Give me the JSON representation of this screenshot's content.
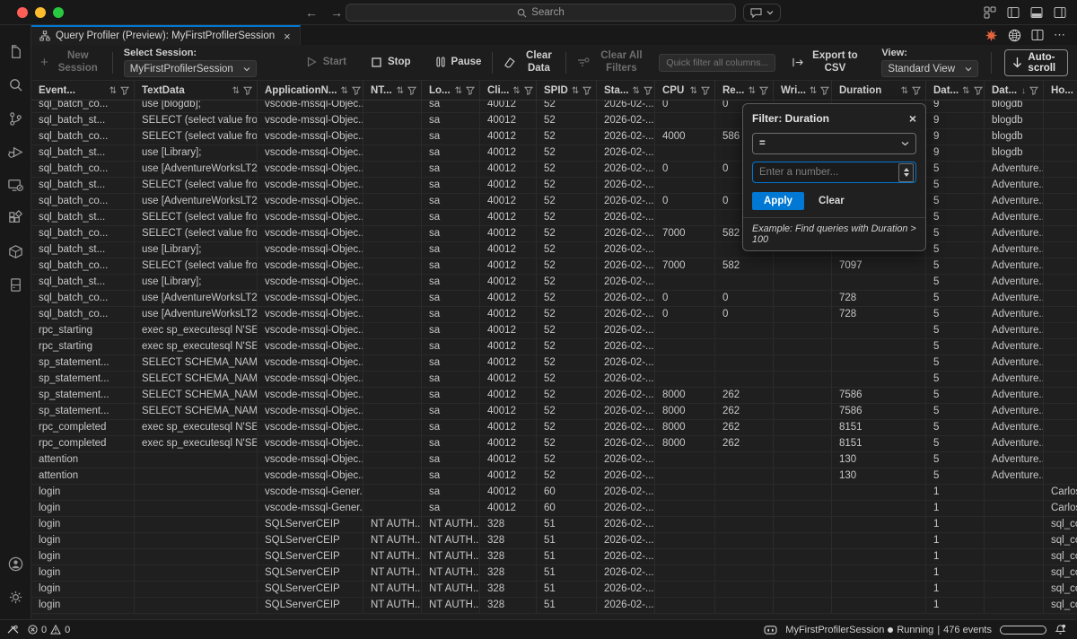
{
  "window": {
    "search_placeholder": "Search"
  },
  "tab": {
    "title": "Query Profiler (Preview): MyFirstProfilerSession",
    "close": "×"
  },
  "toolbar": {
    "new_session": "New Session",
    "select_session_label": "Select Session:",
    "session_value": "MyFirstProfilerSession",
    "start": "Start",
    "stop": "Stop",
    "pause": "Pause",
    "clear_data": "Clear Data",
    "clear_all_filters": "Clear All Filters",
    "quick_filter_placeholder": "Quick filter all columns...",
    "export_csv": "Export to CSV",
    "view_label": "View:",
    "view_value": "Standard View",
    "autoscroll": "Auto-scroll"
  },
  "filter_popup": {
    "title": "Filter: Duration",
    "close": "×",
    "operator": "=",
    "input_placeholder": "Enter a number...",
    "apply": "Apply",
    "clear": "Clear",
    "example": "Example: Find queries with Duration > 100"
  },
  "table": {
    "columns": [
      {
        "key": "event",
        "label": "Event...",
        "sort": "both"
      },
      {
        "key": "textdata",
        "label": "TextData",
        "sort": "both"
      },
      {
        "key": "applicationname",
        "label": "ApplicationN...",
        "sort": "both"
      },
      {
        "key": "ntusername",
        "label": "NT...",
        "sort": "both"
      },
      {
        "key": "loginname",
        "label": "Lo...",
        "sort": "both"
      },
      {
        "key": "clientprocessid",
        "label": "Cli...",
        "sort": "both"
      },
      {
        "key": "spid",
        "label": "SPID",
        "sort": "both"
      },
      {
        "key": "starttime",
        "label": "Sta...",
        "sort": "both"
      },
      {
        "key": "cpu",
        "label": "CPU",
        "sort": "both"
      },
      {
        "key": "reads",
        "label": "Re...",
        "sort": "both"
      },
      {
        "key": "writes",
        "label": "Wri...",
        "sort": "both"
      },
      {
        "key": "duration",
        "label": "Duration",
        "sort": "both"
      },
      {
        "key": "databaseid",
        "label": "Dat...",
        "sort": "both"
      },
      {
        "key": "databasename",
        "label": "Dat...",
        "sort": "desc"
      },
      {
        "key": "hostname",
        "label": "Ho...",
        "sort": "both"
      }
    ],
    "rows": [
      [
        "sql_batch_co...",
        "use [blogdb];",
        "vscode-mssql-Objec...",
        "",
        "sa",
        "40012",
        "52",
        "2026-02-...",
        "0",
        "0",
        "",
        "",
        "9",
        "blogdb",
        ""
      ],
      [
        "sql_batch_st...",
        "SELECT (select value from sys.d...",
        "vscode-mssql-Objec...",
        "",
        "sa",
        "40012",
        "52",
        "2026-02-...",
        "",
        "",
        "",
        "",
        "9",
        "blogdb",
        ""
      ],
      [
        "sql_batch_co...",
        "SELECT (select value from sys.d...",
        "vscode-mssql-Objec...",
        "",
        "sa",
        "40012",
        "52",
        "2026-02-...",
        "4000",
        "586",
        "",
        "",
        "9",
        "blogdb",
        ""
      ],
      [
        "sql_batch_st...",
        "use [Library];",
        "vscode-mssql-Objec...",
        "",
        "sa",
        "40012",
        "52",
        "2026-02-...",
        "",
        "",
        "",
        "",
        "9",
        "blogdb",
        ""
      ],
      [
        "sql_batch_co...",
        "use [AdventureWorksLT2022];",
        "vscode-mssql-Objec...",
        "",
        "sa",
        "40012",
        "52",
        "2026-02-...",
        "0",
        "0",
        "",
        "",
        "5",
        "Adventure...",
        ""
      ],
      [
        "sql_batch_st...",
        "SELECT (select value from sys.d...",
        "vscode-mssql-Objec...",
        "",
        "sa",
        "40012",
        "52",
        "2026-02-...",
        "",
        "",
        "",
        "",
        "5",
        "Adventure...",
        ""
      ],
      [
        "sql_batch_co...",
        "use [AdventureWorksLT2022];",
        "vscode-mssql-Objec...",
        "",
        "sa",
        "40012",
        "52",
        "2026-02-...",
        "0",
        "0",
        "",
        "",
        "5",
        "Adventure...",
        ""
      ],
      [
        "sql_batch_st...",
        "SELECT (select value from sys.d...",
        "vscode-mssql-Objec...",
        "",
        "sa",
        "40012",
        "52",
        "2026-02-...",
        "",
        "",
        "",
        "",
        "5",
        "Adventure...",
        ""
      ],
      [
        "sql_batch_co...",
        "SELECT (select value from sys.d...",
        "vscode-mssql-Objec...",
        "",
        "sa",
        "40012",
        "52",
        "2026-02-...",
        "7000",
        "582",
        "",
        "7097",
        "5",
        "Adventure...",
        ""
      ],
      [
        "sql_batch_st...",
        "use [Library];",
        "vscode-mssql-Objec...",
        "",
        "sa",
        "40012",
        "52",
        "2026-02-...",
        "",
        "",
        "",
        "",
        "5",
        "Adventure...",
        ""
      ],
      [
        "sql_batch_co...",
        "SELECT (select value from sys.d...",
        "vscode-mssql-Objec...",
        "",
        "sa",
        "40012",
        "52",
        "2026-02-...",
        "7000",
        "582",
        "",
        "7097",
        "5",
        "Adventure...",
        ""
      ],
      [
        "sql_batch_st...",
        "use [Library];",
        "vscode-mssql-Objec...",
        "",
        "sa",
        "40012",
        "52",
        "2026-02-...",
        "",
        "",
        "",
        "",
        "5",
        "Adventure...",
        ""
      ],
      [
        "sql_batch_co...",
        "use [AdventureWorksLT2022]",
        "vscode-mssql-Objec...",
        "",
        "sa",
        "40012",
        "52",
        "2026-02-...",
        "0",
        "0",
        "",
        "728",
        "5",
        "Adventure...",
        ""
      ],
      [
        "sql_batch_co...",
        "use [AdventureWorksLT2022]",
        "vscode-mssql-Objec...",
        "",
        "sa",
        "40012",
        "52",
        "2026-02-...",
        "0",
        "0",
        "",
        "728",
        "5",
        "Adventure...",
        ""
      ],
      [
        "rpc_starting",
        "exec sp_executesql N'SELECT S...",
        "vscode-mssql-Objec...",
        "",
        "sa",
        "40012",
        "52",
        "2026-02-...",
        "",
        "",
        "",
        "",
        "5",
        "Adventure...",
        ""
      ],
      [
        "rpc_starting",
        "exec sp_executesql N'SELECT S...",
        "vscode-mssql-Objec...",
        "",
        "sa",
        "40012",
        "52",
        "2026-02-...",
        "",
        "",
        "",
        "",
        "5",
        "Adventure...",
        ""
      ],
      [
        "sp_statement...",
        "SELECT SCHEMA_NAME(tbl.sch...",
        "vscode-mssql-Objec...",
        "",
        "sa",
        "40012",
        "52",
        "2026-02-...",
        "",
        "",
        "",
        "",
        "5",
        "Adventure...",
        ""
      ],
      [
        "sp_statement...",
        "SELECT SCHEMA_NAME(tbl.sch...",
        "vscode-mssql-Objec...",
        "",
        "sa",
        "40012",
        "52",
        "2026-02-...",
        "",
        "",
        "",
        "",
        "5",
        "Adventure...",
        ""
      ],
      [
        "sp_statement...",
        "SELECT SCHEMA_NAME(tbl.sch...",
        "vscode-mssql-Objec...",
        "",
        "sa",
        "40012",
        "52",
        "2026-02-...",
        "8000",
        "262",
        "",
        "7586",
        "5",
        "Adventure...",
        ""
      ],
      [
        "sp_statement...",
        "SELECT SCHEMA_NAME(tbl.sch...",
        "vscode-mssql-Objec...",
        "",
        "sa",
        "40012",
        "52",
        "2026-02-...",
        "8000",
        "262",
        "",
        "7586",
        "5",
        "Adventure...",
        ""
      ],
      [
        "rpc_completed",
        "exec sp_executesql N'SELECT S...",
        "vscode-mssql-Objec...",
        "",
        "sa",
        "40012",
        "52",
        "2026-02-...",
        "8000",
        "262",
        "",
        "8151",
        "5",
        "Adventure...",
        ""
      ],
      [
        "rpc_completed",
        "exec sp_executesql N'SELECT S...",
        "vscode-mssql-Objec...",
        "",
        "sa",
        "40012",
        "52",
        "2026-02-...",
        "8000",
        "262",
        "",
        "8151",
        "5",
        "Adventure...",
        ""
      ],
      [
        "attention",
        "",
        "vscode-mssql-Objec...",
        "",
        "sa",
        "40012",
        "52",
        "2026-02-...",
        "",
        "",
        "",
        "130",
        "5",
        "Adventure...",
        ""
      ],
      [
        "attention",
        "",
        "vscode-mssql-Objec...",
        "",
        "sa",
        "40012",
        "52",
        "2026-02-...",
        "",
        "",
        "",
        "130",
        "5",
        "Adventure...",
        ""
      ],
      [
        "login",
        "",
        "vscode-mssql-Gener...",
        "",
        "sa",
        "40012",
        "60",
        "2026-02-...",
        "",
        "",
        "",
        "",
        "1",
        "",
        "Carlos"
      ],
      [
        "login",
        "",
        "vscode-mssql-Gener...",
        "",
        "sa",
        "40012",
        "60",
        "2026-02-...",
        "",
        "",
        "",
        "",
        "1",
        "",
        "Carlos"
      ],
      [
        "login",
        "",
        "SQLServerCEIP",
        "NT AUTH...",
        "NT AUTH...",
        "328",
        "51",
        "2026-02-...",
        "",
        "",
        "",
        "",
        "1",
        "",
        "sql_co..."
      ],
      [
        "login",
        "",
        "SQLServerCEIP",
        "NT AUTH...",
        "NT AUTH...",
        "328",
        "51",
        "2026-02-...",
        "",
        "",
        "",
        "",
        "1",
        "",
        "sql_co..."
      ],
      [
        "login",
        "",
        "SQLServerCEIP",
        "NT AUTH...",
        "NT AUTH...",
        "328",
        "51",
        "2026-02-...",
        "",
        "",
        "",
        "",
        "1",
        "",
        "sql_co..."
      ],
      [
        "login",
        "",
        "SQLServerCEIP",
        "NT AUTH...",
        "NT AUTH...",
        "328",
        "51",
        "2026-02-...",
        "",
        "",
        "",
        "",
        "1",
        "",
        "sql_co..."
      ],
      [
        "login",
        "",
        "SQLServerCEIP",
        "NT AUTH...",
        "NT AUTH...",
        "328",
        "51",
        "2026-02-...",
        "",
        "",
        "",
        "",
        "1",
        "",
        "sql_co..."
      ],
      [
        "login",
        "",
        "SQLServerCEIP",
        "NT AUTH...",
        "NT AUTH...",
        "328",
        "51",
        "2026-02-...",
        "",
        "",
        "",
        "",
        "1",
        "",
        "sql_co..."
      ]
    ]
  },
  "status_bar": {
    "errors": "0",
    "warnings": "0",
    "session": "MyFirstProfilerSession",
    "state": "Running",
    "events": "476 events"
  }
}
